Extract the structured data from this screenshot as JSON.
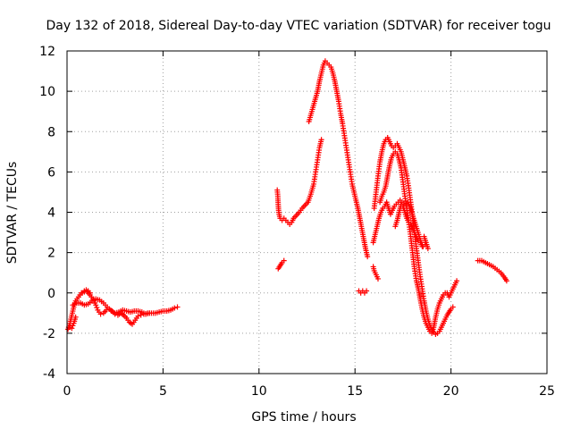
{
  "chart_data": {
    "type": "scatter",
    "title": "Day 132 of 2018, Sidereal Day-to-day VTEC variation (SDTVAR) for receiver togu",
    "xlabel": "GPS time / hours",
    "ylabel": "SDTVAR / TECUs",
    "xlim": [
      0,
      25
    ],
    "ylim": [
      -4,
      12
    ],
    "xticks": [
      0,
      5,
      10,
      15,
      20,
      25
    ],
    "yticks": [
      -4,
      -2,
      0,
      2,
      4,
      6,
      8,
      10,
      12
    ],
    "xtick_labels": [
      "0",
      "5",
      "10",
      "15",
      "20",
      "25"
    ],
    "ytick_labels": [
      "-4",
      "-2",
      "0",
      "2",
      "4",
      "6",
      "8",
      "10",
      "12"
    ],
    "grid": true,
    "marker": "plus",
    "series": [
      {
        "name": "SDTVAR",
        "color": "#ff0000",
        "segments": [
          [
            [
              0.05,
              -1.8
            ],
            [
              0.15,
              -1.5
            ],
            [
              0.25,
              -1.1
            ],
            [
              0.35,
              -0.7
            ],
            [
              0.45,
              -0.4
            ],
            [
              0.6,
              -0.2
            ],
            [
              0.75,
              0.0
            ],
            [
              0.9,
              0.05
            ],
            [
              1.05,
              0.05
            ],
            [
              1.2,
              -0.1
            ],
            [
              1.35,
              -0.3
            ],
            [
              1.5,
              -0.6
            ],
            [
              1.6,
              -0.85
            ],
            [
              1.75,
              -1.05
            ],
            [
              1.9,
              -1.0
            ],
            [
              2.05,
              -0.85
            ],
            [
              2.2,
              -0.8
            ],
            [
              2.35,
              -0.9
            ],
            [
              2.5,
              -1.05
            ],
            [
              2.65,
              -1.1
            ],
            [
              2.8,
              -1.0
            ],
            [
              2.95,
              -1.1
            ],
            [
              3.1,
              -1.25
            ],
            [
              3.25,
              -1.45
            ],
            [
              3.4,
              -1.55
            ],
            [
              3.55,
              -1.35
            ],
            [
              3.7,
              -1.15
            ],
            [
              3.85,
              -1.1
            ],
            [
              4.0,
              -1.05
            ],
            [
              4.2,
              -1.0
            ],
            [
              4.4,
              -1.0
            ],
            [
              4.6,
              -1.0
            ],
            [
              4.8,
              -0.95
            ],
            [
              5.0,
              -0.9
            ],
            [
              5.2,
              -0.9
            ],
            [
              5.4,
              -0.85
            ],
            [
              5.6,
              -0.75
            ],
            [
              5.75,
              -0.7
            ]
          ],
          [
            [
              0.3,
              -0.6
            ],
            [
              0.5,
              -0.5
            ],
            [
              0.7,
              -0.5
            ],
            [
              0.9,
              -0.6
            ],
            [
              1.1,
              -0.55
            ],
            [
              1.3,
              -0.4
            ],
            [
              1.5,
              -0.3
            ],
            [
              1.7,
              -0.35
            ],
            [
              1.9,
              -0.5
            ],
            [
              2.1,
              -0.7
            ],
            [
              2.3,
              -0.9
            ],
            [
              2.5,
              -1.0
            ],
            [
              2.7,
              -0.95
            ],
            [
              2.9,
              -0.85
            ],
            [
              3.1,
              -0.9
            ],
            [
              3.3,
              -0.95
            ],
            [
              3.5,
              -0.9
            ],
            [
              3.7,
              -0.9
            ],
            [
              3.9,
              -0.95
            ],
            [
              4.1,
              -1.05
            ],
            [
              4.3,
              -1.0
            ]
          ],
          [
            [
              0.15,
              -1.7
            ],
            [
              0.25,
              -1.75
            ],
            [
              0.35,
              -1.5
            ],
            [
              0.45,
              -1.2
            ]
          ],
          [
            [
              0.8,
              0.0
            ],
            [
              0.9,
              0.1
            ],
            [
              1.0,
              0.15
            ],
            [
              1.1,
              0.1
            ],
            [
              1.2,
              0.0
            ]
          ],
          [
            [
              10.95,
              5.1
            ],
            [
              10.98,
              4.8
            ],
            [
              11.0,
              4.4
            ],
            [
              11.02,
              4.1
            ],
            [
              11.05,
              3.9
            ],
            [
              11.1,
              3.7
            ],
            [
              11.2,
              3.6
            ],
            [
              11.3,
              3.7
            ],
            [
              11.4,
              3.6
            ],
            [
              11.5,
              3.5
            ],
            [
              11.6,
              3.4
            ],
            [
              11.7,
              3.5
            ],
            [
              11.8,
              3.7
            ],
            [
              11.95,
              3.85
            ],
            [
              12.1,
              4.0
            ],
            [
              12.25,
              4.2
            ],
            [
              12.4,
              4.35
            ],
            [
              12.55,
              4.5
            ],
            [
              12.7,
              4.9
            ],
            [
              12.85,
              5.4
            ],
            [
              12.95,
              6.0
            ],
            [
              13.05,
              6.6
            ],
            [
              13.15,
              7.2
            ],
            [
              13.25,
              7.6
            ]
          ],
          [
            [
              11.0,
              1.2
            ],
            [
              11.1,
              1.35
            ],
            [
              11.2,
              1.5
            ],
            [
              11.3,
              1.6
            ]
          ],
          [
            [
              12.6,
              8.5
            ],
            [
              12.75,
              9.0
            ],
            [
              12.9,
              9.5
            ],
            [
              13.05,
              10.0
            ],
            [
              13.15,
              10.5
            ],
            [
              13.25,
              10.9
            ],
            [
              13.35,
              11.3
            ],
            [
              13.45,
              11.5
            ],
            [
              13.55,
              11.4
            ],
            [
              13.65,
              11.3
            ],
            [
              13.75,
              11.2
            ],
            [
              13.85,
              10.9
            ],
            [
              13.95,
              10.5
            ],
            [
              14.05,
              10.0
            ],
            [
              14.15,
              9.5
            ],
            [
              14.25,
              8.9
            ],
            [
              14.35,
              8.4
            ],
            [
              14.45,
              7.8
            ],
            [
              14.55,
              7.2
            ],
            [
              14.65,
              6.6
            ],
            [
              14.75,
              6.0
            ],
            [
              14.85,
              5.4
            ],
            [
              14.95,
              5.0
            ],
            [
              15.05,
              4.6
            ],
            [
              15.15,
              4.2
            ],
            [
              15.25,
              3.7
            ],
            [
              15.35,
              3.2
            ],
            [
              15.45,
              2.7
            ],
            [
              15.55,
              2.2
            ],
            [
              15.65,
              1.8
            ]
          ],
          [
            [
              15.2,
              0.1
            ],
            [
              15.3,
              0.0
            ],
            [
              15.4,
              0.1
            ],
            [
              15.5,
              0.0
            ],
            [
              15.6,
              0.1
            ]
          ],
          [
            [
              15.95,
              2.5
            ],
            [
              16.05,
              2.9
            ],
            [
              16.15,
              3.3
            ],
            [
              16.25,
              3.7
            ],
            [
              16.35,
              4.0
            ],
            [
              16.45,
              4.2
            ],
            [
              16.55,
              4.3
            ],
            [
              16.65,
              4.5
            ],
            [
              16.75,
              4.2
            ],
            [
              16.85,
              3.9
            ],
            [
              16.95,
              4.1
            ],
            [
              17.05,
              4.3
            ],
            [
              17.15,
              4.4
            ],
            [
              17.25,
              4.5
            ],
            [
              17.35,
              4.6
            ],
            [
              17.45,
              4.5
            ],
            [
              17.55,
              4.4
            ],
            [
              17.65,
              4.4
            ],
            [
              17.75,
              4.5
            ],
            [
              17.85,
              4.3
            ],
            [
              17.95,
              4.0
            ],
            [
              18.05,
              3.7
            ],
            [
              18.15,
              3.4
            ],
            [
              18.25,
              3.1
            ],
            [
              18.35,
              2.8
            ],
            [
              18.45,
              2.5
            ],
            [
              18.55,
              2.3
            ],
            [
              18.65,
              2.4
            ]
          ],
          [
            [
              16.0,
              4.2
            ],
            [
              16.1,
              5.0
            ],
            [
              16.2,
              5.8
            ],
            [
              16.3,
              6.5
            ],
            [
              16.4,
              7.0
            ],
            [
              16.5,
              7.4
            ],
            [
              16.6,
              7.6
            ],
            [
              16.7,
              7.7
            ],
            [
              16.8,
              7.5
            ],
            [
              16.9,
              7.3
            ],
            [
              17.0,
              7.2
            ],
            [
              17.1,
              7.3
            ],
            [
              17.2,
              7.4
            ],
            [
              17.3,
              7.2
            ],
            [
              17.4,
              7.0
            ],
            [
              17.5,
              6.6
            ],
            [
              17.6,
              6.2
            ],
            [
              17.7,
              5.8
            ],
            [
              17.8,
              5.2
            ],
            [
              17.9,
              4.5
            ],
            [
              18.0,
              3.8
            ],
            [
              18.1,
              3.0
            ],
            [
              18.2,
              2.2
            ],
            [
              18.3,
              1.5
            ],
            [
              18.4,
              0.8
            ],
            [
              18.5,
              0.2
            ],
            [
              18.6,
              -0.4
            ],
            [
              18.7,
              -0.9
            ],
            [
              18.8,
              -1.3
            ],
            [
              18.9,
              -1.6
            ],
            [
              19.0,
              -1.8
            ],
            [
              19.1,
              -1.95
            ],
            [
              19.2,
              -2.05
            ],
            [
              19.3,
              -2.0
            ],
            [
              19.4,
              -1.9
            ],
            [
              19.5,
              -1.7
            ],
            [
              19.6,
              -1.5
            ],
            [
              19.7,
              -1.3
            ],
            [
              19.8,
              -1.1
            ],
            [
              19.9,
              -0.95
            ],
            [
              20.0,
              -0.8
            ],
            [
              20.1,
              -0.7
            ]
          ],
          [
            [
              16.3,
              4.5
            ],
            [
              16.4,
              4.8
            ],
            [
              16.5,
              5.0
            ],
            [
              16.6,
              5.3
            ],
            [
              16.7,
              5.8
            ],
            [
              16.8,
              6.3
            ],
            [
              16.9,
              6.7
            ],
            [
              17.0,
              6.9
            ],
            [
              17.1,
              7.0
            ],
            [
              17.2,
              6.9
            ],
            [
              17.3,
              6.6
            ],
            [
              17.4,
              6.2
            ],
            [
              17.5,
              5.5
            ],
            [
              17.6,
              4.8
            ],
            [
              17.7,
              4.2
            ],
            [
              17.8,
              3.5
            ],
            [
              17.9,
              2.8
            ],
            [
              18.0,
              2.0
            ],
            [
              18.1,
              1.2
            ],
            [
              18.2,
              0.6
            ],
            [
              18.3,
              0.2
            ],
            [
              18.4,
              -0.3
            ],
            [
              18.5,
              -0.8
            ],
            [
              18.6,
              -1.2
            ],
            [
              18.7,
              -1.5
            ],
            [
              18.8,
              -1.7
            ],
            [
              18.9,
              -1.9
            ],
            [
              19.0,
              -2.0
            ],
            [
              19.1,
              -1.7
            ],
            [
              19.2,
              -1.2
            ],
            [
              19.3,
              -0.8
            ],
            [
              19.4,
              -0.5
            ],
            [
              19.5,
              -0.3
            ],
            [
              19.6,
              -0.1
            ],
            [
              19.7,
              0.0
            ],
            [
              19.8,
              0.0
            ],
            [
              19.9,
              -0.2
            ],
            [
              20.0,
              0.0
            ],
            [
              20.1,
              0.2
            ],
            [
              20.2,
              0.4
            ],
            [
              20.3,
              0.6
            ]
          ],
          [
            [
              17.1,
              3.3
            ],
            [
              17.2,
              3.6
            ],
            [
              17.3,
              4.0
            ],
            [
              17.4,
              4.4
            ],
            [
              17.5,
              4.3
            ],
            [
              17.6,
              4.0
            ],
            [
              17.7,
              3.7
            ],
            [
              17.8,
              3.5
            ],
            [
              17.9,
              3.4
            ],
            [
              18.0,
              3.2
            ],
            [
              18.1,
              3.0
            ],
            [
              18.2,
              2.8
            ],
            [
              18.3,
              2.6
            ],
            [
              18.4,
              2.5
            ],
            [
              18.5,
              2.3
            ]
          ],
          [
            [
              18.6,
              2.8
            ],
            [
              18.7,
              2.5
            ],
            [
              18.8,
              2.2
            ]
          ],
          [
            [
              15.95,
              1.3
            ],
            [
              16.0,
              1.1
            ],
            [
              16.1,
              0.9
            ],
            [
              16.2,
              0.7
            ]
          ],
          [
            [
              21.4,
              1.6
            ],
            [
              21.6,
              1.6
            ],
            [
              21.8,
              1.5
            ],
            [
              22.0,
              1.4
            ],
            [
              22.2,
              1.3
            ],
            [
              22.4,
              1.15
            ],
            [
              22.6,
              1.0
            ],
            [
              22.8,
              0.75
            ],
            [
              22.9,
              0.6
            ]
          ]
        ]
      }
    ]
  }
}
